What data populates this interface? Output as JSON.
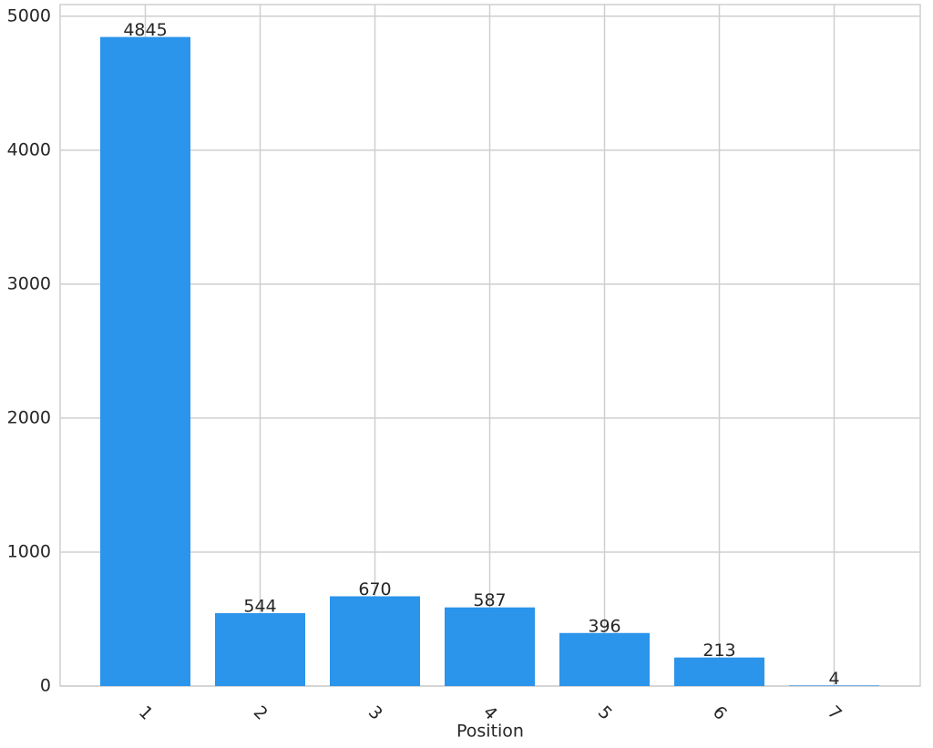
{
  "chart_data": {
    "type": "bar",
    "x_label": "Position",
    "categories": [
      "1",
      "2",
      "3",
      "4",
      "5",
      "6",
      "7"
    ],
    "values": [
      4845,
      544,
      670,
      587,
      396,
      213,
      4
    ],
    "color": "#2b94eb",
    "ylim": [
      0,
      5087
    ],
    "yticks": [
      0,
      1000,
      2000,
      3000,
      4000,
      5000
    ],
    "grid": true
  }
}
